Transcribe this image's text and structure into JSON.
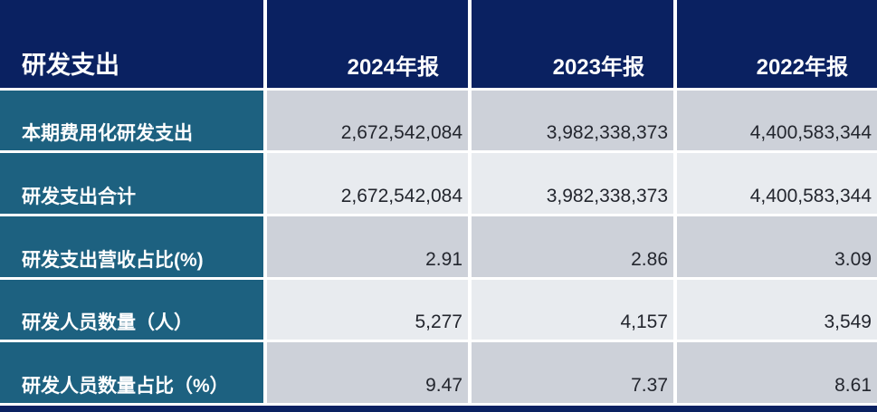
{
  "colors": {
    "header_bg": "#0a2161",
    "label_column_bg": "#1d6180",
    "row_dark_gray_bg": "#cdd1d9",
    "row_light_gray_bg": "#e8ebef",
    "header_text": "#ffffff",
    "label_text": "#ffffff",
    "value_text": "#23262e",
    "grid_gap": "#ffffff",
    "bottom_bar": "#0a2161"
  },
  "chart_data": {
    "type": "table",
    "title": "研发支出",
    "columns": [
      "2024年报",
      "2023年报",
      "2022年报"
    ],
    "rows": [
      {
        "label": "本期费用化研发支出",
        "values": [
          "2,672,542,084",
          "3,982,338,373",
          "4,400,583,344"
        ]
      },
      {
        "label": "研发支出合计",
        "values": [
          "2,672,542,084",
          "3,982,338,373",
          "4,400,583,344"
        ]
      },
      {
        "label": "研发支出营收占比(%)",
        "values": [
          "2.91",
          "2.86",
          "3.09"
        ]
      },
      {
        "label": "研发人员数量（人）",
        "values": [
          "5,277",
          "4,157",
          "3,549"
        ]
      },
      {
        "label": "研发人员数量占比（%）",
        "values": [
          "9.47",
          "7.37",
          "8.61"
        ]
      }
    ]
  }
}
